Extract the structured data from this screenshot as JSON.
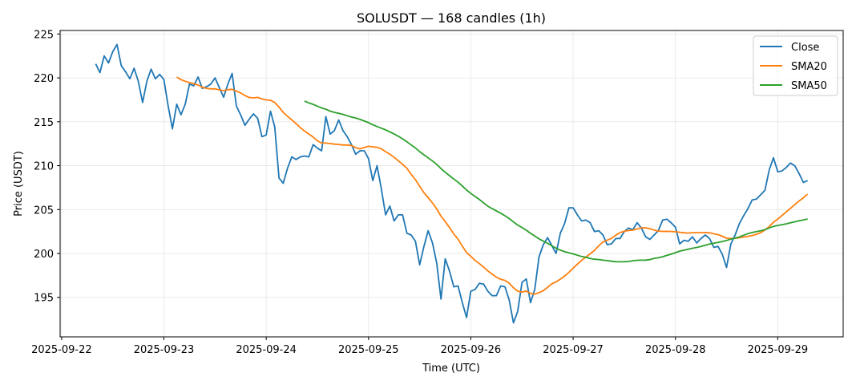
{
  "chart_data": {
    "type": "line",
    "title": "SOLUSDT — 168 candles (1h)",
    "xlabel": "Time (UTC)",
    "ylabel": "Price (USDT)",
    "x_start": "2025-09-22T08:00",
    "x_step_hours": 1,
    "xlim_hours_from_first_tick": [
      -0.35,
      183.35
    ],
    "ylim": [
      190.5,
      225.4
    ],
    "grid": true,
    "legend_position": "top-right",
    "yticks": [
      195,
      200,
      205,
      210,
      215,
      220,
      225
    ],
    "xticks": [
      "2025-09-22",
      "2025-09-23",
      "2025-09-24",
      "2025-09-25",
      "2025-09-26",
      "2025-09-27",
      "2025-09-28",
      "2025-09-29"
    ],
    "series": [
      {
        "name": "Close",
        "color": "#1f77b4",
        "values": [
          221.6,
          220.6,
          222.5,
          221.7,
          223.0,
          223.8,
          221.4,
          220.7,
          219.9,
          221.1,
          219.6,
          217.2,
          219.6,
          221.0,
          219.9,
          220.4,
          219.8,
          216.8,
          214.2,
          217.0,
          215.8,
          217.0,
          219.3,
          219.1,
          220.1,
          218.8,
          219.0,
          219.3,
          220.0,
          218.9,
          217.8,
          219.3,
          220.5,
          216.8,
          215.8,
          214.6,
          215.3,
          215.9,
          215.4,
          213.3,
          213.5,
          216.2,
          214.4,
          208.6,
          208.0,
          209.7,
          211.0,
          210.7,
          211.0,
          211.1,
          211.0,
          212.4,
          212.0,
          211.7,
          215.6,
          213.6,
          214.0,
          215.2,
          214.0,
          213.3,
          212.4,
          211.3,
          211.7,
          211.7,
          210.8,
          208.3,
          210.0,
          207.4,
          204.4,
          205.4,
          203.7,
          204.4,
          204.4,
          202.3,
          202.1,
          201.4,
          198.7,
          200.8,
          202.6,
          201.2,
          198.9,
          194.8,
          199.4,
          198.0,
          196.2,
          196.3,
          194.4,
          192.7,
          195.7,
          195.9,
          196.6,
          196.5,
          195.7,
          195.2,
          195.2,
          196.3,
          196.2,
          194.7,
          192.1,
          193.4,
          196.7,
          197.1,
          194.4,
          195.9,
          199.6,
          201.0,
          201.8,
          200.9,
          200.0,
          202.3,
          203.4,
          205.2,
          205.2,
          204.4,
          203.7,
          203.8,
          203.5,
          202.5,
          202.6,
          202.1,
          201.0,
          201.1,
          201.7,
          201.7,
          202.5,
          202.9,
          202.7,
          203.5,
          202.9,
          201.9,
          201.6,
          202.1,
          202.6,
          203.8,
          203.9,
          203.5,
          203.0,
          201.1,
          201.5,
          201.4,
          201.9,
          201.2,
          201.7,
          202.1,
          201.7,
          200.7,
          200.8,
          199.9,
          198.4,
          201.1,
          202.1,
          203.4,
          204.3,
          205.1,
          206.1,
          206.2,
          206.7,
          207.2,
          209.5,
          210.9,
          209.3,
          209.4,
          209.8,
          210.3,
          210.0,
          209.1,
          208.1,
          208.3
        ]
      },
      {
        "name": "SMA20",
        "color": "#ff7f0e",
        "window": 20
      },
      {
        "name": "SMA50",
        "color": "#2ca02c",
        "window": 50
      }
    ]
  }
}
